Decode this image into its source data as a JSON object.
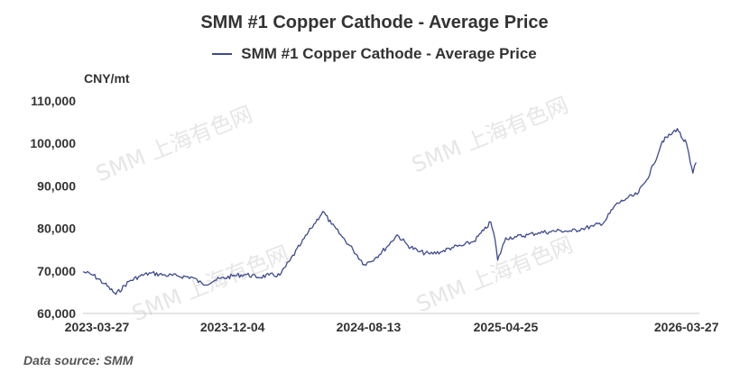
{
  "chart_data": {
    "type": "line",
    "title": "SMM #1 Copper Cathode - Average Price",
    "legend": "SMM #1 Copper Cathode - Average Price",
    "legend_placement": "top-center",
    "unit": "CNY/mt",
    "source": "Data source:  SMM",
    "watermark": "SMM 上海有色网",
    "grid": false,
    "ylim": [
      60000,
      110000
    ],
    "y_ticks": [
      60000,
      70000,
      80000,
      90000,
      100000,
      110000
    ],
    "y_tick_labels": [
      "60,000",
      "70,000",
      "80,000",
      "90,000",
      "100,000",
      "110,000"
    ],
    "xlim": [
      "2023-03-01",
      "2026-04-20"
    ],
    "x_ticks": [
      "2023-03-27",
      "2023-12-04",
      "2024-08-13",
      "2025-04-25",
      "2026-03-27"
    ],
    "color": "#3d4a8f",
    "series": [
      {
        "name": "SMM #1 Copper Cathode - Average Price",
        "x": [
          "2023-03-01",
          "2023-03-20",
          "2023-04-10",
          "2023-05-01",
          "2023-05-25",
          "2023-06-15",
          "2023-07-05",
          "2023-08-01",
          "2023-08-25",
          "2023-09-20",
          "2023-10-10",
          "2023-11-01",
          "2023-12-04",
          "2023-12-28",
          "2024-01-20",
          "2024-02-10",
          "2024-03-01",
          "2024-03-20",
          "2024-04-10",
          "2024-04-28",
          "2024-05-20",
          "2024-06-05",
          "2024-06-25",
          "2024-07-15",
          "2024-08-05",
          "2024-08-25",
          "2024-09-15",
          "2024-10-05",
          "2024-10-25",
          "2024-11-15",
          "2024-12-05",
          "2024-12-25",
          "2025-01-15",
          "2025-02-05",
          "2025-02-25",
          "2025-03-15",
          "2025-03-28",
          "2025-04-05",
          "2025-04-10",
          "2025-04-25",
          "2025-05-15",
          "2025-06-05",
          "2025-06-25",
          "2025-07-15",
          "2025-08-05",
          "2025-08-25",
          "2025-09-15",
          "2025-10-05",
          "2025-10-25",
          "2025-11-15",
          "2025-12-05",
          "2025-12-25",
          "2026-01-10",
          "2026-01-25",
          "2026-02-10",
          "2026-02-25",
          "2026-03-10",
          "2026-03-20",
          "2026-03-27",
          "2026-04-03",
          "2026-04-08",
          "2026-04-14"
        ],
        "values": [
          69800,
          69000,
          67000,
          64500,
          67500,
          68800,
          69500,
          69000,
          68800,
          68500,
          66800,
          67800,
          68800,
          69200,
          68500,
          69000,
          69000,
          72500,
          76500,
          80000,
          84000,
          81000,
          78000,
          75000,
          71500,
          73000,
          75500,
          78500,
          76000,
          74500,
          74000,
          74500,
          75500,
          76000,
          77000,
          79500,
          81500,
          77500,
          72500,
          77800,
          78000,
          78500,
          79000,
          79200,
          79500,
          79300,
          80000,
          80500,
          81500,
          85500,
          87000,
          88000,
          91000,
          95000,
          100500,
          102000,
          103500,
          101000,
          100000,
          95500,
          93000,
          95500
        ]
      }
    ]
  }
}
